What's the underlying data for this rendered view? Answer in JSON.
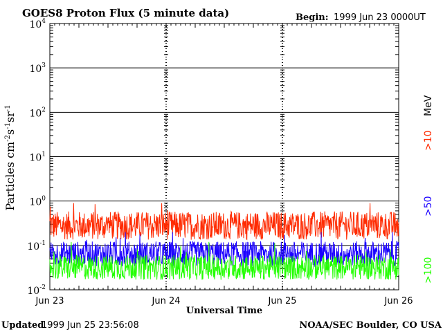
{
  "chart_data": {
    "type": "line",
    "title": "GOES8 Proton Flux (5 minute data)",
    "begin_label": "Begin:",
    "begin_value": "1999 Jun 23 0000UT",
    "xlabel": "Universal Time",
    "ylabel_main": "Particles cm",
    "ylabel_sup1": "-2",
    "ylabel_mid1": "s",
    "ylabel_sup2": "-1",
    "ylabel_mid2": "sr",
    "ylabel_sup3": "-1",
    "x_tick_labels": [
      "Jun 23",
      "Jun 24",
      "Jun 25",
      "Jun 26"
    ],
    "x_range_days": [
      0,
      3
    ],
    "y_scale": "log",
    "ylim": [
      0.01,
      10000
    ],
    "y_ticks": [
      {
        "base": "10",
        "exp": "-2"
      },
      {
        "base": "10",
        "exp": "-1"
      },
      {
        "base": "10",
        "exp": "0"
      },
      {
        "base": "10",
        "exp": "1"
      },
      {
        "base": "10",
        "exp": "2"
      },
      {
        "base": "10",
        "exp": "3"
      },
      {
        "base": "10",
        "exp": "4"
      }
    ],
    "grid": true,
    "legend_placement": "right",
    "legend_unit": "MeV",
    "series": [
      {
        "name": ">10",
        "color": "#ff2a00",
        "baseline": 0.28,
        "spread": 0.32,
        "peak_max": 0.9
      },
      {
        "name": ">50",
        "color": "#1a00ff",
        "baseline": 0.065,
        "spread": 0.28,
        "peak_max": 0.2
      },
      {
        "name": ">100",
        "color": "#22ff00",
        "baseline": 0.032,
        "spread": 0.28,
        "peak_max": 0.12
      }
    ]
  },
  "footer": {
    "updated_label": "Updated",
    "updated_value": "1999 Jun 25 23:56:08",
    "source": "NOAA/SEC Boulder, CO USA"
  }
}
